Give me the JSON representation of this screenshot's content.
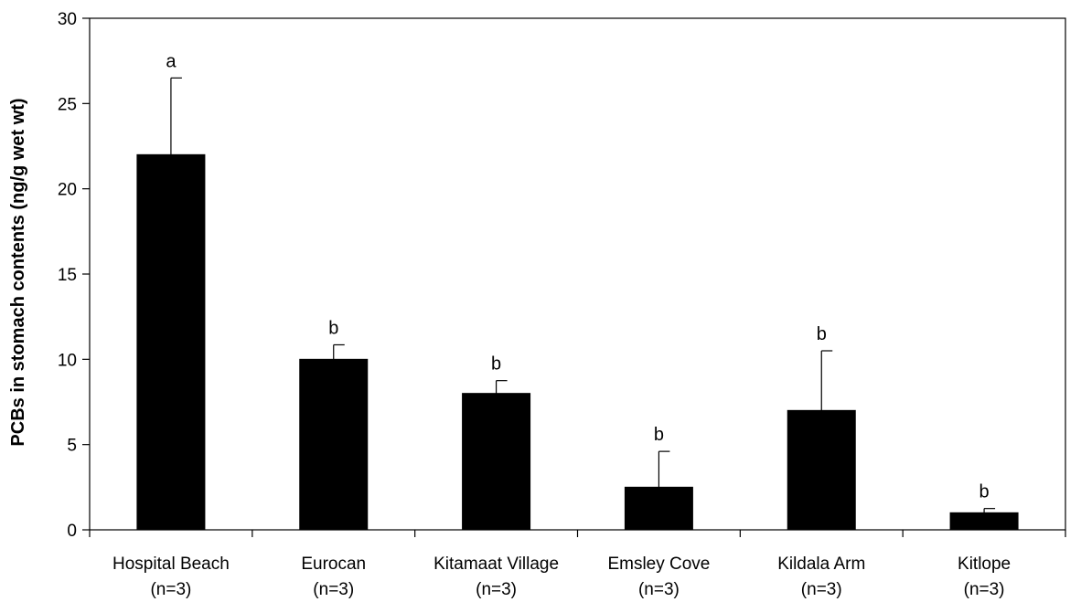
{
  "chart_data": {
    "type": "bar",
    "title": "",
    "xlabel": "",
    "ylabel": "PCBs in stomach contents (ng/g wet wt)",
    "ylim": [
      0,
      30
    ],
    "yticks": [
      0,
      5,
      10,
      15,
      20,
      25,
      30
    ],
    "categories": [
      {
        "name": "Hospital Beach",
        "n": "(n=3)"
      },
      {
        "name": "Eurocan",
        "n": "(n=3)"
      },
      {
        "name": "Kitamaat Village",
        "n": "(n=3)"
      },
      {
        "name": "Emsley Cove",
        "n": "(n=3)"
      },
      {
        "name": "Kildala Arm",
        "n": "(n=3)"
      },
      {
        "name": "Kitlope",
        "n": "(n=3)"
      }
    ],
    "values": [
      22.0,
      10.0,
      8.0,
      2.5,
      7.0,
      1.0
    ],
    "error_upper": [
      4.5,
      0.85,
      0.75,
      2.1,
      3.5,
      0.25
    ],
    "significance": [
      "a",
      "b",
      "b",
      "b",
      "b",
      "b"
    ],
    "grid": false,
    "legend": "none",
    "bar_color": "#000000"
  }
}
